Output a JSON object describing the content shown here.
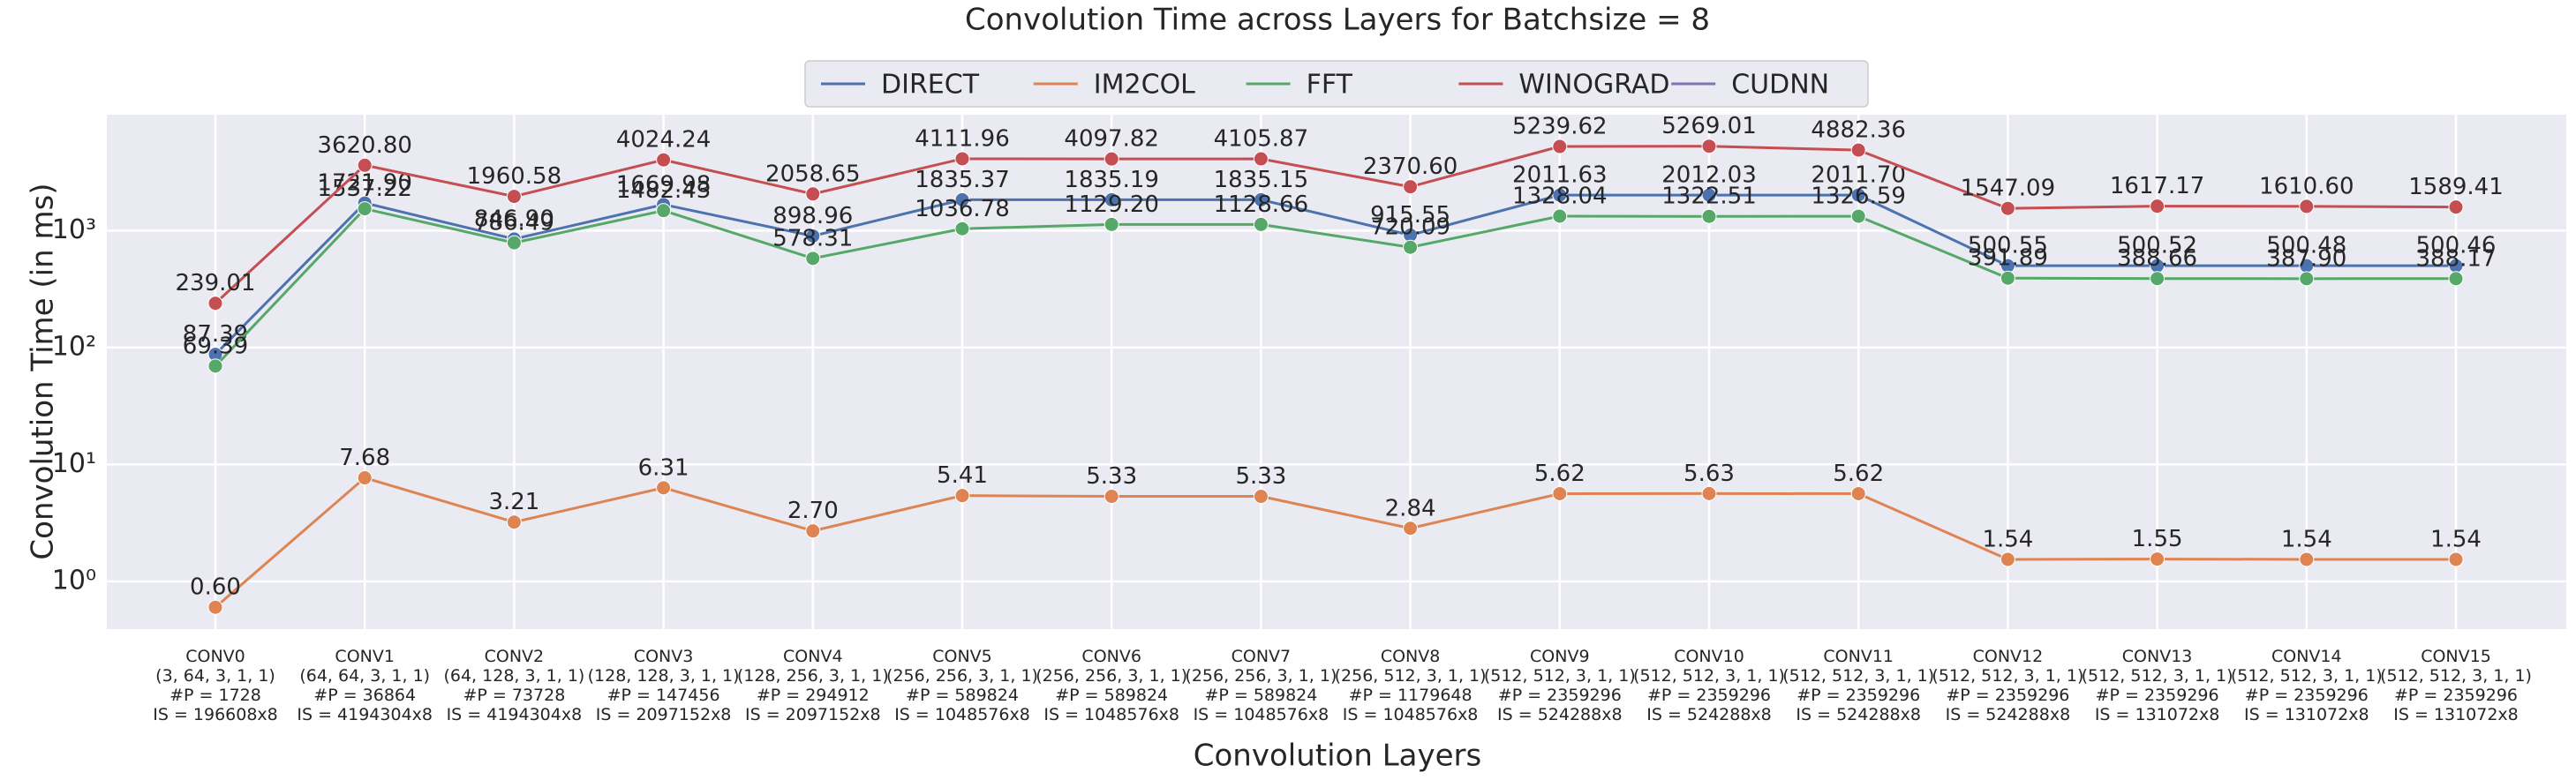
{
  "chart_data": {
    "type": "line",
    "title": "Convolution Time across Layers for Batchsize = 8",
    "xlabel": "Convolution Layers",
    "ylabel": "Convolution Time (in ms)",
    "categories": [
      [
        "CONV0",
        "(3, 64, 3, 1, 1)",
        "#P = 1728",
        "IS = 196608x8"
      ],
      [
        "CONV1",
        "(64, 64, 3, 1, 1)",
        "#P = 36864",
        "IS = 4194304x8"
      ],
      [
        "CONV2",
        "(64, 128, 3, 1, 1)",
        "#P = 73728",
        "IS = 4194304x8"
      ],
      [
        "CONV3",
        "(128, 128, 3, 1, 1)",
        "#P = 147456",
        "IS = 2097152x8"
      ],
      [
        "CONV4",
        "(128, 256, 3, 1, 1)",
        "#P = 294912",
        "IS = 2097152x8"
      ],
      [
        "CONV5",
        "(256, 256, 3, 1, 1)",
        "#P = 589824",
        "IS = 1048576x8"
      ],
      [
        "CONV6",
        "(256, 256, 3, 1, 1)",
        "#P = 589824",
        "IS = 1048576x8"
      ],
      [
        "CONV7",
        "(256, 256, 3, 1, 1)",
        "#P = 589824",
        "IS = 1048576x8"
      ],
      [
        "CONV8",
        "(256, 512, 3, 1, 1)",
        "#P = 1179648",
        "IS = 1048576x8"
      ],
      [
        "CONV9",
        "(512, 512, 3, 1, 1)",
        "#P = 2359296",
        "IS = 524288x8"
      ],
      [
        "CONV10",
        "(512, 512, 3, 1, 1)",
        "#P = 2359296",
        "IS = 524288x8"
      ],
      [
        "CONV11",
        "(512, 512, 3, 1, 1)",
        "#P = 2359296",
        "IS = 524288x8"
      ],
      [
        "CONV12",
        "(512, 512, 3, 1, 1)",
        "#P = 2359296",
        "IS = 524288x8"
      ],
      [
        "CONV13",
        "(512, 512, 3, 1, 1)",
        "#P = 2359296",
        "IS = 131072x8"
      ],
      [
        "CONV14",
        "(512, 512, 3, 1, 1)",
        "#P = 2359296",
        "IS = 131072x8"
      ],
      [
        "CONV15",
        "(512, 512, 3, 1, 1)",
        "#P = 2359296",
        "IS = 131072x8"
      ]
    ],
    "series": [
      {
        "name": "DIRECT",
        "color": "#4c72b0",
        "values": [
          87.39,
          1721.9,
          846.9,
          1669.98,
          898.96,
          1835.37,
          1835.19,
          1835.15,
          915.55,
          2011.63,
          2012.03,
          2011.7,
          500.55,
          500.52,
          500.48,
          500.46
        ],
        "value_labels": [
          "87.39",
          "1721.90",
          "846.90",
          "1669.98",
          "898.96",
          "1835.37",
          "1835.19",
          "1835.15",
          "915.55",
          "2011.63",
          "2012.03",
          "2011.70",
          "500.55",
          "500.52",
          "500.48",
          "500.46"
        ]
      },
      {
        "name": "IM2COL",
        "color": "#dd8452",
        "values": [
          0.6,
          7.68,
          3.21,
          6.31,
          2.7,
          5.41,
          5.33,
          5.33,
          2.84,
          5.62,
          5.63,
          5.62,
          1.54,
          1.55,
          1.54,
          1.54
        ],
        "value_labels": [
          "0.60",
          "7.68",
          "3.21",
          "6.31",
          "2.70",
          "5.41",
          "5.33",
          "5.33",
          "2.84",
          "5.62",
          "5.63",
          "5.62",
          "1.54",
          "1.55",
          "1.54",
          "1.54"
        ]
      },
      {
        "name": "FFT",
        "color": "#55a868",
        "values": [
          69.39,
          1537.22,
          786.49,
          1482.43,
          578.31,
          1036.78,
          1129.2,
          1128.66,
          720.09,
          1328.04,
          1322.51,
          1326.59,
          391.89,
          388.66,
          387.9,
          388.17
        ],
        "value_labels": [
          "69.39",
          "1537.22",
          "786.49",
          "1482.43",
          "578.31",
          "1036.78",
          "1129.20",
          "1128.66",
          "720.09",
          "1328.04",
          "1322.51",
          "1326.59",
          "391.89",
          "388.66",
          "387.90",
          "388.17"
        ]
      },
      {
        "name": "WINOGRAD",
        "color": "#c44e52",
        "values": [
          239.01,
          3620.8,
          1960.58,
          4024.24,
          2058.65,
          4111.96,
          4097.82,
          4105.87,
          2370.6,
          5239.62,
          5269.01,
          4882.36,
          1547.09,
          1617.17,
          1610.6,
          1589.41
        ],
        "value_labels": [
          "239.01",
          "3620.80",
          "1960.58",
          "4024.24",
          "2058.65",
          "4111.96",
          "4097.82",
          "4105.87",
          "2370.60",
          "5239.62",
          "5269.01",
          "4882.36",
          "1547.09",
          "1617.17",
          "1610.60",
          "1589.41"
        ]
      },
      {
        "name": "CUDNN",
        "color": "#8172b3",
        "values": [
          null,
          null,
          null,
          null,
          null,
          null,
          null,
          null,
          null,
          null,
          null,
          null,
          null,
          null,
          null,
          null
        ]
      }
    ],
    "ylim": [
      0.39,
      9800
    ],
    "yticks": [
      {
        "value": 1,
        "label": "10⁰"
      },
      {
        "value": 10,
        "label": "10¹"
      },
      {
        "value": 100,
        "label": "10²"
      },
      {
        "value": 1000,
        "label": "10³"
      }
    ],
    "log_y": true,
    "grid": true,
    "legend": "top"
  }
}
